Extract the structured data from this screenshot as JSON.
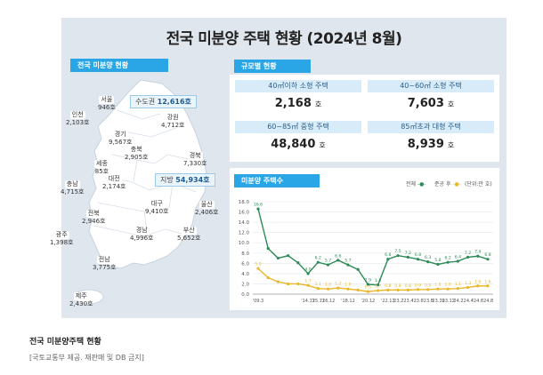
{
  "title": "전국 미분양 주택 현황  (2024년 8월)",
  "map": {
    "label": "전국 미분양 현황",
    "callouts": {
      "capital": {
        "name": "수도권",
        "value": "12,616호"
      },
      "provinces": {
        "name": "지방",
        "value": "54,934호"
      }
    },
    "regions": [
      {
        "name": "서울",
        "value": "946호"
      },
      {
        "name": "인천",
        "value": "2,103호"
      },
      {
        "name": "경기",
        "value": "9,567호"
      },
      {
        "name": "강원",
        "value": "4,712호"
      },
      {
        "name": "충북",
        "value": "2,905호"
      },
      {
        "name": "경북",
        "value": "7,330호"
      },
      {
        "name": "세종",
        "value": "85호"
      },
      {
        "name": "충남",
        "value": "4,715호"
      },
      {
        "name": "대전",
        "value": "2,174호"
      },
      {
        "name": "대구",
        "value": "9,410호"
      },
      {
        "name": "울산",
        "value": "2,406호"
      },
      {
        "name": "전북",
        "value": "2,946호"
      },
      {
        "name": "경남",
        "value": "4,996호"
      },
      {
        "name": "부산",
        "value": "5,652호"
      },
      {
        "name": "광주",
        "value": "1,398호"
      },
      {
        "name": "전남",
        "value": "3,775호"
      },
      {
        "name": "제주",
        "value": "2,430호"
      }
    ]
  },
  "size_status": {
    "label": "규모별 현황",
    "cells": [
      {
        "head": "40㎡이하 소형 주택",
        "value": "2,168",
        "unit": "호"
      },
      {
        "head": "40~60㎡ 소형 주택",
        "value": "7,603",
        "unit": "호"
      },
      {
        "head": "60~85㎡ 중형 주택",
        "value": "48,840",
        "unit": "호"
      },
      {
        "head": "85㎡초과 대형 주택",
        "value": "8,939",
        "unit": "호"
      }
    ]
  },
  "chart_data": {
    "type": "line",
    "title": "미분양 주택수",
    "unit_label": "(단위:만 호)",
    "ylim": [
      0,
      18
    ],
    "yticks": [
      "18.0",
      "16.0",
      "14.0",
      "12.0",
      "10.0",
      "8.0",
      "6.0",
      "4.0",
      "2.0",
      "0.0"
    ],
    "xticks": [
      "'09.3",
      "'14.12",
      "'15.12",
      "'16.12",
      "'18.12",
      "'20.12",
      "'22.12",
      "'23.2",
      "'23.4",
      "'23.6",
      "'23.8",
      "'23.10",
      "'23.12",
      "'24.2",
      "'24.4",
      "'24.6",
      "'24.8"
    ],
    "x": [
      "'09.3",
      "'10.12",
      "'11.12",
      "'12.12",
      "'13.12",
      "'14.12",
      "'15.12",
      "'16.12",
      "'17.12",
      "'18.12",
      "'19.12",
      "'20.12",
      "'21.12",
      "'22.12",
      "'23.2",
      "'23.4",
      "'23.6",
      "'23.8",
      "'23.10",
      "'23.12",
      "'24.2",
      "'24.4",
      "'24.6",
      "'24.8"
    ],
    "series": [
      {
        "name": "전체",
        "color": "#2e8b57",
        "labels": [
          "16.6",
          "",
          "",
          "",
          "",
          "4.0",
          "6.2",
          "5.7",
          "6.6",
          "5.7",
          "",
          "1.9",
          "1.8",
          "6.8",
          "7.5",
          "7.2",
          "6.8",
          "6.3",
          "5.8",
          "6.2",
          "6.4",
          "7.2",
          "7.4",
          "6.8"
        ],
        "values": [
          16.6,
          8.9,
          7.0,
          7.5,
          6.1,
          4.0,
          6.2,
          5.7,
          6.6,
          5.7,
          4.8,
          1.9,
          1.8,
          6.8,
          7.5,
          7.2,
          6.8,
          6.3,
          5.8,
          6.2,
          6.4,
          7.2,
          7.4,
          6.8
        ]
      },
      {
        "name": "준공 후",
        "color": "#e8b82a",
        "labels": [
          "5.0",
          "",
          "",
          "",
          "",
          "1.7",
          "1.1",
          "1.0",
          "1.2",
          "1.0",
          "",
          "0.5",
          "0.7",
          "0.8",
          "0.8",
          "0.8",
          "0.9",
          "0.9",
          "1.0",
          "1.0",
          "1.1",
          "1.3",
          "1.6",
          "1.6"
        ],
        "values": [
          5.0,
          3.2,
          2.4,
          2.0,
          2.0,
          1.7,
          1.1,
          1.0,
          1.2,
          1.0,
          0.8,
          0.5,
          0.7,
          0.8,
          0.8,
          0.8,
          0.9,
          0.9,
          1.0,
          1.0,
          1.1,
          1.3,
          1.6,
          1.6
        ]
      }
    ]
  },
  "footer": {
    "caption": "전국 미분양주택 현황",
    "source": "[국토교통부 제공. 재판매 및 DB 금지]"
  }
}
